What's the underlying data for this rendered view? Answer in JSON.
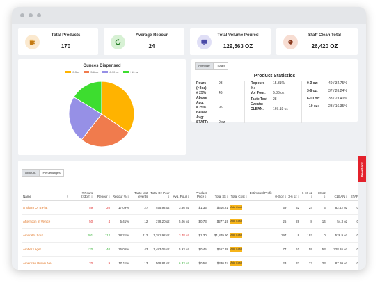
{
  "stats": [
    {
      "label": "Total Products",
      "value": "170",
      "icon": "beer-mug-icon",
      "bg": "#fbe9cf"
    },
    {
      "label": "Average Repour",
      "value": "24",
      "icon": "refresh-icon",
      "bg": "#d7f1d4"
    },
    {
      "label": "Total Volume Poured",
      "value": "129,563 OZ",
      "icon": "monitor-icon",
      "bg": "#e0dff6"
    },
    {
      "label": "Staff Clean Total",
      "value": "26,420 OZ",
      "icon": "cleaning-icon",
      "bg": "#f7ddd2"
    }
  ],
  "pie": {
    "title": "Ounces Dispensed",
    "legend": [
      "0-3oz",
      "3-6 oz",
      "6-10 oz",
      "+10 oz"
    ],
    "colors": [
      "#ffb300",
      "#f07b4d",
      "#9690e6",
      "#3ddd2f"
    ]
  },
  "chart_data": {
    "type": "pie",
    "title": "Ounces Dispensed",
    "categories": [
      "0-3oz",
      "3-6 oz",
      "6-10 oz",
      "+10 oz"
    ],
    "values": [
      34.75,
      26.24,
      23.4,
      16.35
    ]
  },
  "stats_panel": {
    "tabs": [
      "Average",
      "Totals"
    ],
    "title": "Product Statistics",
    "col1": [
      {
        "k": "Pours (>3oz):",
        "v": "93"
      },
      {
        "k": "# 25% Above Avg:",
        "v": "46"
      },
      {
        "k": "# 25% Below Avg:",
        "v": "95"
      },
      {
        "k": "STAFF:",
        "v": "0 oz"
      }
    ],
    "col2": [
      {
        "k": "Repours %:",
        "v": "15.31%"
      },
      {
        "k": "Vol Pour:",
        "v": "5.36 oz"
      },
      {
        "k": "Taste Test Events:",
        "v": "28"
      },
      {
        "k": "CLEAN:",
        "v": "167.18 oz"
      }
    ],
    "col3": [
      {
        "k": "0-3 oz:",
        "v": "49 / 34.75%"
      },
      {
        "k": "3-6 oz:",
        "v": "37 / 26.24%"
      },
      {
        "k": "6-10 oz:",
        "v": "33 / 23.40%"
      },
      {
        "k": "+10 oz:",
        "v": "23 / 16.35%"
      }
    ]
  },
  "table": {
    "tabs": [
      "Amount",
      "Percentages"
    ],
    "headers": [
      "Name",
      "↑",
      "# Pours (>3oz) ↕",
      "Repour ↕",
      "Repour % ↕",
      "Taste test events",
      "Total Oz Pour ↕",
      "Avg. Pour ↕",
      "Product Price ↕",
      "Total $$ ↕",
      "Total Cost ↕",
      "Estimated Profit ↕",
      "0-3 oz ↕",
      "3-6 oz ↕",
      "6-10 oz ↕",
      "+10 oz ↕",
      "CLEAN ↕",
      "STAFF ↕"
    ],
    "add_label": "Add Cost",
    "rows": [
      {
        "name": "A Sharp Or B Flat",
        "pours": "59",
        "repour": "20",
        "repour_pct": "17.09%",
        "taste": "27",
        "total_oz": "455.92 oz",
        "avg": "3.86 oz",
        "price": "$1.35",
        "total": "$616.21",
        "profit": "",
        "b03": "59",
        "b36": "32",
        "b610": "24",
        "b10": "3",
        "clean": "82.42 oz",
        "staff": "0 oz",
        "pc": "red",
        "rc": "red",
        "ac": ""
      },
      {
        "name": "Afternoon In Venice",
        "pours": "50",
        "repour": "4",
        "repour_pct": "5.41%",
        "taste": "12",
        "total_oz": "379.20 oz",
        "avg": "5.06 oz",
        "price": "$0.73",
        "total": "$277.19",
        "profit": "",
        "b03": "25",
        "b36": "28",
        "b610": "8",
        "b10": "14",
        "clean": "54.3 oz",
        "staff": "0 oz",
        "pc": "red",
        "rc": "red",
        "ac": ""
      },
      {
        "name": "Amaretto Sour",
        "pours": "201",
        "repour": "112",
        "repour_pct": "28.21%",
        "taste": "112",
        "total_oz": "1,381.92 oz",
        "avg": "3.48 oz",
        "price": "$1.30",
        "total": "$1,849.90",
        "profit": "",
        "b03": "197",
        "b36": "8",
        "b610": "193",
        "b10": "0",
        "clean": "526.9 oz",
        "staff": "0 oz",
        "pc": "green",
        "rc": "green",
        "ac": "red"
      },
      {
        "name": "Amber Lager",
        "pours": "170",
        "repour": "40",
        "repour_pct": "16.06%",
        "taste": "43",
        "total_oz": "1,483.05 oz",
        "avg": "5.93 oz",
        "price": "$0.45",
        "total": "$667.38",
        "profit": "",
        "b03": "77",
        "b36": "61",
        "b610": "59",
        "b10": "53",
        "clean": "228.26 oz",
        "staff": "0 oz",
        "pc": "green",
        "rc": "green",
        "ac": ""
      },
      {
        "name": "American Brown Ale",
        "pours": "70",
        "repour": "9",
        "repour_pct": "10.11%",
        "taste": "13",
        "total_oz": "569.81 oz",
        "avg": "6.33 oz",
        "price": "$0.58",
        "total": "$330.74",
        "profit": "",
        "b03": "23",
        "b36": "33",
        "b610": "23",
        "b10": "23",
        "clean": "87.99 oz",
        "staff": "0 oz",
        "pc": "red",
        "rc": "red",
        "ac": "green"
      },
      {
        "name": "Apollo Osp",
        "pours": "56",
        "repour": "13",
        "repour_pct": "13.83%",
        "taste": "27",
        "total_oz": "464.30 oz",
        "avg": "4.99 oz",
        "price": "$0.78",
        "total": "$362.17",
        "profit": "",
        "b03": "35",
        "b36": "32",
        "b610": "21",
        "b10": "12",
        "clean": "133.22 oz",
        "staff": "0 oz",
        "pc": "red",
        "rc": "red",
        "ac": ""
      }
    ]
  },
  "feedback": "Feedback"
}
